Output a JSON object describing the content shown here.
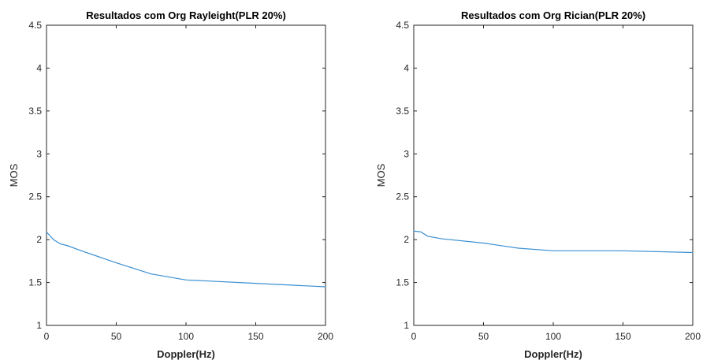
{
  "chart_data": [
    {
      "type": "line",
      "title": "Resultados com Org Rayleight(PLR 20%)",
      "xlabel": "Doppler(Hz)",
      "ylabel": "MOS",
      "xlim": [
        0,
        200
      ],
      "ylim": [
        1,
        4.5
      ],
      "xticks": [
        "0",
        "50",
        "100",
        "150",
        "200"
      ],
      "yticks": [
        "1",
        "1.5",
        "2",
        "2.5",
        "3",
        "3.5",
        "4",
        "4.5"
      ],
      "grid": false,
      "color": "#3a8fd1",
      "series": [
        {
          "x": [
            0,
            5,
            10,
            15,
            25,
            50,
            75,
            100,
            150,
            200
          ],
          "values": [
            2.09,
            2.0,
            1.95,
            1.93,
            1.87,
            1.73,
            1.6,
            1.53,
            1.49,
            1.45
          ]
        }
      ]
    },
    {
      "type": "line",
      "title": "Resultados com Org Rician(PLR 20%)",
      "xlabel": "Doppler(Hz)",
      "ylabel": "MOS",
      "xlim": [
        0,
        200
      ],
      "ylim": [
        1,
        4.5
      ],
      "xticks": [
        "0",
        "50",
        "100",
        "150",
        "200"
      ],
      "yticks": [
        "1",
        "1.5",
        "2",
        "2.5",
        "3",
        "3.5",
        "4",
        "4.5"
      ],
      "grid": false,
      "color": "#3a8fd1",
      "series": [
        {
          "x": [
            0,
            5,
            10,
            20,
            50,
            75,
            100,
            150,
            200
          ],
          "values": [
            2.1,
            2.09,
            2.04,
            2.01,
            1.96,
            1.9,
            1.87,
            1.87,
            1.85
          ]
        }
      ]
    }
  ]
}
